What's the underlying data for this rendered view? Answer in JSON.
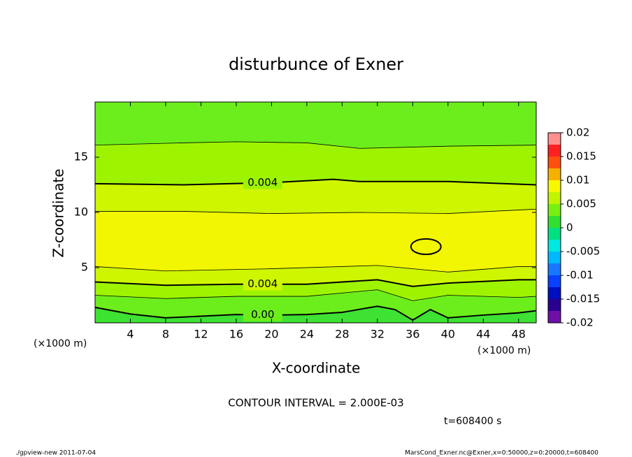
{
  "chart_data": {
    "type": "contour",
    "title": "disturbunce of Exner",
    "xlabel": "X-coordinate",
    "ylabel": "Z-coordinate",
    "xunit_left": "(×1000 m)",
    "xunit_right": "(×1000 m)",
    "xlim": [
      0,
      50
    ],
    "ylim": [
      0,
      20
    ],
    "xticks": [
      4,
      8,
      12,
      16,
      20,
      24,
      28,
      32,
      36,
      40,
      44,
      48
    ],
    "yticks": [
      5,
      10,
      15
    ],
    "contour_interval": "CONTOUR INTERVAL = 2.000E-03",
    "time_label": "t=608400 s",
    "footer_left": "./gpview-new  2011-07-04",
    "footer_right": "MarsCond_Exner.nc@Exner,x=0:50000,z=0:20000,t=608400",
    "region_colors": [
      "#3ee232",
      "#6cee1c",
      "#9ef400",
      "#cef600",
      "#f2f600",
      "#cef600",
      "#9ef400",
      "#6cee1c"
    ],
    "contours": [
      {
        "level": 0.0,
        "label": "0.00",
        "x": [
          0,
          4,
          8,
          12,
          16,
          20,
          24,
          28,
          32,
          34,
          36,
          38,
          40,
          44,
          48,
          50
        ],
        "z": [
          1.4,
          0.8,
          0.45,
          0.6,
          0.75,
          0.7,
          0.75,
          0.95,
          1.5,
          1.2,
          0.25,
          1.2,
          0.45,
          0.7,
          0.9,
          1.1
        ]
      },
      {
        "level": 0.002,
        "x": [
          0,
          8,
          16,
          24,
          32,
          36,
          40,
          48,
          50
        ],
        "z": [
          2.5,
          2.2,
          2.4,
          2.4,
          3.0,
          2.0,
          2.5,
          2.3,
          2.4
        ]
      },
      {
        "level": 0.004,
        "label": "0.004",
        "x": [
          0,
          8,
          16,
          24,
          32,
          36,
          40,
          48,
          50
        ],
        "z": [
          3.7,
          3.4,
          3.5,
          3.5,
          3.9,
          3.3,
          3.6,
          3.9,
          3.9
        ]
      },
      {
        "level": 0.006,
        "x": [
          0,
          8,
          20,
          32,
          40,
          48,
          50
        ],
        "z": [
          5.1,
          4.7,
          4.9,
          5.2,
          4.6,
          5.1,
          5.1
        ]
      },
      {
        "level": 0.006,
        "x": [
          0,
          10,
          20,
          30,
          40,
          50
        ],
        "z": [
          10.1,
          10.1,
          9.9,
          10.0,
          9.9,
          10.3
        ]
      },
      {
        "level": 0.004,
        "label": "0.004",
        "x": [
          0,
          10,
          20,
          27,
          30,
          40,
          50
        ],
        "z": [
          12.6,
          12.5,
          12.7,
          13.0,
          12.8,
          12.8,
          12.5
        ]
      },
      {
        "level": 0.002,
        "x": [
          0,
          10,
          16,
          24,
          30,
          40,
          50
        ],
        "z": [
          16.1,
          16.3,
          16.4,
          16.3,
          15.8,
          16.0,
          16.1
        ]
      }
    ],
    "closed_contour": {
      "level": 0.008,
      "cx": 37.5,
      "cz": 6.9,
      "rx": 1.7,
      "rz": 0.7
    },
    "colorbar": {
      "ticks": [
        0.02,
        0.015,
        0.01,
        0.005,
        0,
        -0.005,
        -0.01,
        -0.015,
        -0.02
      ],
      "bounds": [
        -0.02,
        -0.0175,
        -0.015,
        -0.0125,
        -0.01,
        -0.0075,
        -0.005,
        -0.0025,
        0,
        0.0025,
        0.005,
        0.0075,
        0.01,
        0.0125,
        0.015,
        0.0175,
        0.02
      ],
      "colors": [
        "#6e10a8",
        "#2a0090",
        "#0010c0",
        "#0a40ff",
        "#1878ff",
        "#00b8ff",
        "#00e8e0",
        "#00e080",
        "#30e030",
        "#78f010",
        "#c0f400",
        "#f8f800",
        "#f8b000",
        "#ff5010",
        "#ff2020",
        "#ff9090"
      ]
    }
  }
}
